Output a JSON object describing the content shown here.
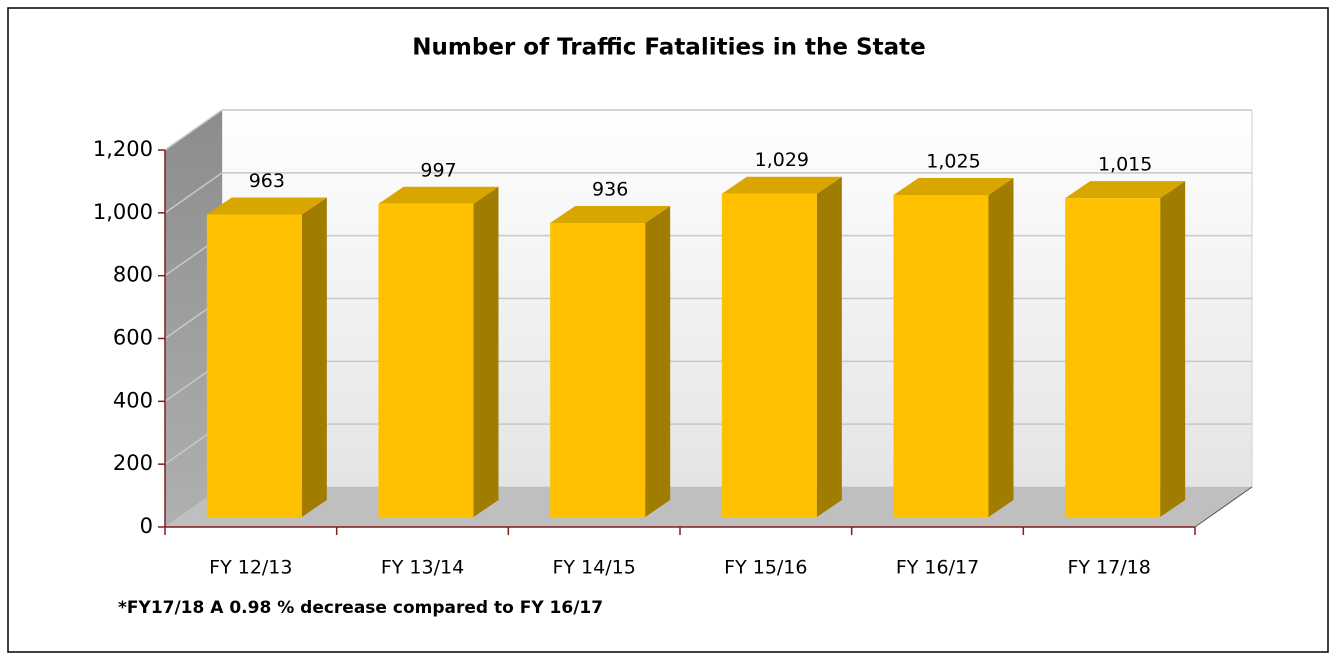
{
  "chart_data": {
    "type": "bar3d",
    "title": "Number of Traffic Fatalities in the State",
    "categories": [
      "FY 12/13",
      "FY 13/14",
      "FY 14/15",
      "FY 15/16",
      "FY 16/17",
      "FY 17/18"
    ],
    "values": [
      963,
      997,
      936,
      1029,
      1025,
      1015
    ],
    "value_labels": [
      "963",
      "997",
      "936",
      "1,029",
      "1,025",
      "1,015"
    ],
    "color": "#ffc000",
    "ylim": [
      0,
      1200
    ],
    "yticks": [
      0,
      200,
      400,
      600,
      800,
      {
        "value": 1000,
        "label": "1,000"
      },
      {
        "value": 1200,
        "label": "1,200"
      }
    ],
    "grid": true,
    "annotation": "*FY17/18 A 0.98 % decrease compared to FY 16/17"
  }
}
